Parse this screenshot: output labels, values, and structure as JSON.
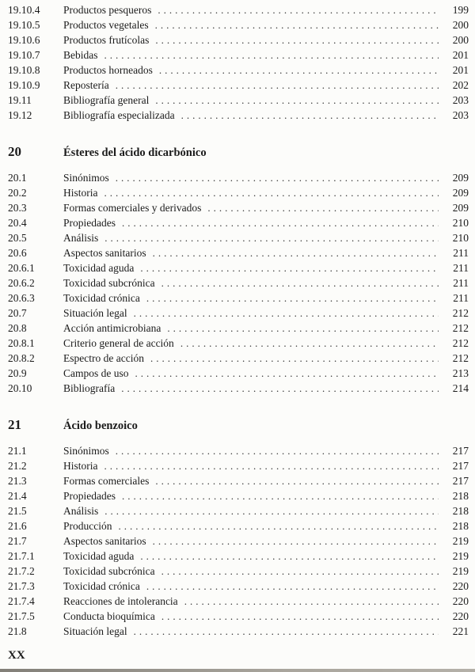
{
  "page": {
    "footer": "XX"
  },
  "toc": {
    "sections": [
      {
        "type": "entry",
        "number": "19.10.4",
        "title": "Productos pesqueros",
        "page": "199"
      },
      {
        "type": "entry",
        "number": "19.10.5",
        "title": "Productos vegetales",
        "page": "200"
      },
      {
        "type": "entry",
        "number": "19.10.6",
        "title": "Productos frutícolas",
        "page": "200"
      },
      {
        "type": "entry",
        "number": "19.10.7",
        "title": "Bebidas",
        "page": "201"
      },
      {
        "type": "entry",
        "number": "19.10.8",
        "title": "Productos horneados",
        "page": "201"
      },
      {
        "type": "entry",
        "number": "19.10.9",
        "title": "Repostería",
        "page": "202"
      },
      {
        "type": "entry",
        "number": "19.11",
        "title": "Bibliografía general",
        "page": "203"
      },
      {
        "type": "entry",
        "number": "19.12",
        "title": "Bibliografía especializada",
        "page": "203"
      },
      {
        "type": "chapter",
        "number": "20",
        "title": "Ésteres del ácido dicarbónico"
      },
      {
        "type": "entry",
        "number": "20.1",
        "title": "Sinónimos",
        "page": "209"
      },
      {
        "type": "entry",
        "number": "20.2",
        "title": "Historia",
        "page": "209"
      },
      {
        "type": "entry",
        "number": "20.3",
        "title": "Formas comerciales y derivados",
        "page": "209"
      },
      {
        "type": "entry",
        "number": "20.4",
        "title": "Propiedades",
        "page": "210"
      },
      {
        "type": "entry",
        "number": "20.5",
        "title": "Análisis",
        "page": "210"
      },
      {
        "type": "entry",
        "number": "20.6",
        "title": "Aspectos sanitarios",
        "page": "211"
      },
      {
        "type": "entry",
        "number": "20.6.1",
        "title": "Toxicidad aguda",
        "page": "211"
      },
      {
        "type": "entry",
        "number": "20.6.2",
        "title": "Toxicidad subcrónica",
        "page": "211"
      },
      {
        "type": "entry",
        "number": "20.6.3",
        "title": "Toxicidad crónica",
        "page": "211"
      },
      {
        "type": "entry",
        "number": "20.7",
        "title": "Situación legal",
        "page": "212"
      },
      {
        "type": "entry",
        "number": "20.8",
        "title": "Acción antimicrobiana",
        "page": "212"
      },
      {
        "type": "entry",
        "number": "20.8.1",
        "title": "Criterio general de acción",
        "page": "212"
      },
      {
        "type": "entry",
        "number": "20.8.2",
        "title": "Espectro de acción",
        "page": "212"
      },
      {
        "type": "entry",
        "number": "20.9",
        "title": "Campos de uso",
        "page": "213"
      },
      {
        "type": "entry",
        "number": "20.10",
        "title": "Bibliografía",
        "page": "214"
      },
      {
        "type": "chapter",
        "number": "21",
        "title": "Ácido benzoico"
      },
      {
        "type": "entry",
        "number": "21.1",
        "title": "Sinónimos",
        "page": "217"
      },
      {
        "type": "entry",
        "number": "21.2",
        "title": "Historia",
        "page": "217"
      },
      {
        "type": "entry",
        "number": "21.3",
        "title": "Formas comerciales",
        "page": "217"
      },
      {
        "type": "entry",
        "number": "21.4",
        "title": "Propiedades",
        "page": "218"
      },
      {
        "type": "entry",
        "number": "21.5",
        "title": "Análisis",
        "page": "218"
      },
      {
        "type": "entry",
        "number": "21.6",
        "title": "Producción",
        "page": "218"
      },
      {
        "type": "entry",
        "number": "21.7",
        "title": "Aspectos sanitarios",
        "page": "219"
      },
      {
        "type": "entry",
        "number": "21.7.1",
        "title": "Toxicidad aguda",
        "page": "219"
      },
      {
        "type": "entry",
        "number": "21.7.2",
        "title": "Toxicidad subcrónica",
        "page": "219"
      },
      {
        "type": "entry",
        "number": "21.7.3",
        "title": "Toxicidad crónica",
        "page": "220"
      },
      {
        "type": "entry",
        "number": "21.7.4",
        "title": "Reacciones de intolerancia",
        "page": "220"
      },
      {
        "type": "entry",
        "number": "21.7.5",
        "title": "Conducta bioquímica",
        "page": "220"
      },
      {
        "type": "entry",
        "number": "21.8",
        "title": "Situación legal",
        "page": "221"
      }
    ]
  }
}
